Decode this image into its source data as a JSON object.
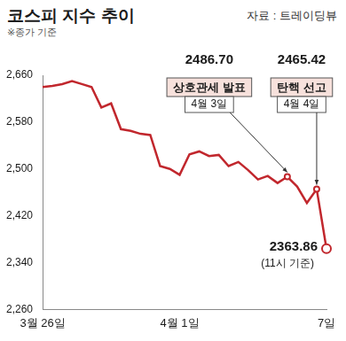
{
  "chart_data": {
    "type": "line",
    "title": "코스피 지수 추이",
    "source": "자료 : 트레이딩뷰",
    "note": "※종가 기준",
    "categories": [
      "3월 26일",
      null,
      null,
      null,
      null,
      null,
      null,
      null,
      null,
      null,
      null,
      null,
      null,
      null,
      "4월 1일",
      null,
      null,
      null,
      null,
      null,
      null,
      null,
      null,
      null,
      null,
      null,
      null,
      null,
      null,
      "7일"
    ],
    "values": [
      2640,
      2642,
      2645,
      2650,
      2645,
      2640,
      2605,
      2612,
      2568,
      2565,
      2560,
      2558,
      2505,
      2500,
      2490,
      2525,
      2530,
      2522,
      2524,
      2505,
      2512,
      2498,
      2482,
      2488,
      2476,
      2486.7,
      2470,
      2442,
      2465.42,
      2363.86
    ],
    "color": "#c1272d",
    "ylim": [
      2260,
      2660
    ],
    "yticks": [
      2260,
      2340,
      2420,
      2500,
      2580,
      2660
    ],
    "grid": false,
    "annotations": [
      {
        "value": 2486.7,
        "label": "2486.70",
        "text": "상호관세 발표",
        "date": "4월 3일"
      },
      {
        "value": 2465.42,
        "label": "2465.42",
        "text": "탄핵 선고",
        "date": "4월 4일"
      },
      {
        "value": 2363.86,
        "label": "2363.86",
        "date": "(11시 기준)"
      }
    ]
  }
}
